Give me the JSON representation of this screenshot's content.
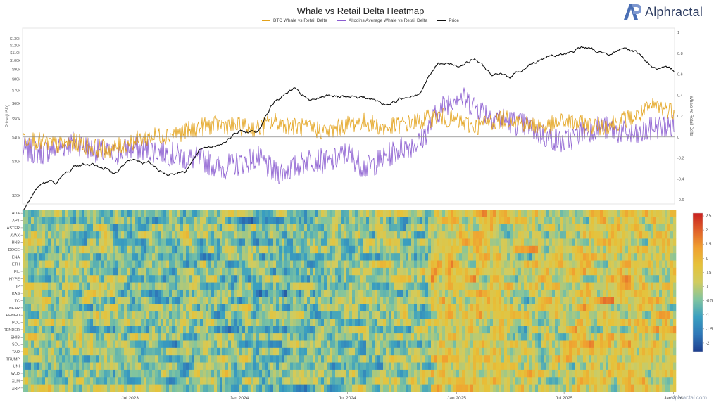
{
  "header": {
    "title": "Whale vs Retail Delta Heatmap",
    "brand": "Alphractal",
    "watermark": "alphractal.com"
  },
  "chart_data": [
    {
      "type": "line",
      "series": [
        {
          "name": "BTC Whale vs Retail Delta",
          "color": "#e3a21a",
          "axis": "right",
          "x": [
            "2023-01-01",
            "2023-02-01",
            "2023-03-01",
            "2023-04-01",
            "2023-05-01",
            "2023-06-01",
            "2023-07-01",
            "2023-08-01",
            "2023-09-01",
            "2023-10-01",
            "2023-11-01",
            "2023-12-01",
            "2024-01-01",
            "2024-02-01",
            "2024-03-01",
            "2024-04-01",
            "2024-05-01",
            "2024-06-01",
            "2024-07-01",
            "2024-08-01",
            "2024-09-01",
            "2024-10-01",
            "2024-11-01",
            "2024-12-01",
            "2025-01-01",
            "2025-02-01",
            "2025-03-01",
            "2025-04-01",
            "2025-05-01",
            "2025-06-01",
            "2025-07-01",
            "2025-08-01",
            "2025-09-01",
            "2025-10-01",
            "2025-11-01",
            "2025-12-01",
            "2026-01-01"
          ],
          "y": [
            0.0,
            -0.05,
            -0.08,
            -0.05,
            -0.1,
            -0.12,
            -0.05,
            0.0,
            0.02,
            0.05,
            0.1,
            0.12,
            0.1,
            0.08,
            0.15,
            0.1,
            0.08,
            0.05,
            0.12,
            0.15,
            0.08,
            0.12,
            0.15,
            0.2,
            0.15,
            0.1,
            0.15,
            0.18,
            0.12,
            0.1,
            0.15,
            0.12,
            0.1,
            0.15,
            0.2,
            0.3,
            0.25
          ]
        },
        {
          "name": "Altcoins Average Whale vs Retail Delta",
          "color": "#8a5cd0",
          "axis": "right",
          "x": [
            "2023-01-01",
            "2023-02-01",
            "2023-03-01",
            "2023-04-01",
            "2023-05-01",
            "2023-06-01",
            "2023-07-01",
            "2023-08-01",
            "2023-09-01",
            "2023-10-01",
            "2023-11-01",
            "2023-12-01",
            "2024-01-01",
            "2024-02-01",
            "2024-03-01",
            "2024-04-01",
            "2024-05-01",
            "2024-06-01",
            "2024-07-01",
            "2024-08-01",
            "2024-09-01",
            "2024-10-01",
            "2024-11-01",
            "2024-12-01",
            "2025-01-01",
            "2025-02-01",
            "2025-03-01",
            "2025-04-01",
            "2025-05-01",
            "2025-06-01",
            "2025-07-01",
            "2025-08-01",
            "2025-09-01",
            "2025-10-01",
            "2025-11-01",
            "2025-12-01",
            "2026-01-01"
          ],
          "y": [
            -0.12,
            -0.15,
            -0.1,
            -0.05,
            -0.12,
            -0.18,
            -0.1,
            -0.12,
            -0.15,
            -0.2,
            -0.22,
            -0.3,
            -0.25,
            -0.2,
            -0.35,
            -0.3,
            -0.2,
            -0.25,
            -0.15,
            -0.3,
            -0.2,
            -0.1,
            -0.05,
            0.25,
            0.4,
            0.3,
            0.2,
            0.15,
            0.1,
            0.0,
            -0.05,
            0.05,
            0.1,
            0.05,
            0.0,
            0.1,
            0.1
          ]
        },
        {
          "name": "Price",
          "color": "#111111",
          "axis": "left",
          "x": [
            "2023-01-01",
            "2023-02-01",
            "2023-03-01",
            "2023-04-01",
            "2023-05-01",
            "2023-06-01",
            "2023-07-01",
            "2023-08-01",
            "2023-09-01",
            "2023-10-01",
            "2023-11-01",
            "2023-12-01",
            "2024-01-01",
            "2024-02-01",
            "2024-03-01",
            "2024-04-01",
            "2024-05-01",
            "2024-06-01",
            "2024-07-01",
            "2024-08-01",
            "2024-09-01",
            "2024-10-01",
            "2024-11-01",
            "2024-12-01",
            "2025-01-01",
            "2025-02-01",
            "2025-03-01",
            "2025-04-01",
            "2025-05-01",
            "2025-06-01",
            "2025-07-01",
            "2025-08-01",
            "2025-09-01",
            "2025-10-01",
            "2025-11-01",
            "2025-12-01",
            "2026-01-01"
          ],
          "y": [
            16800,
            23000,
            23500,
            28500,
            29200,
            26500,
            30500,
            29500,
            25900,
            27000,
            35000,
            37500,
            42500,
            43000,
            62000,
            71000,
            60500,
            67500,
            62500,
            64500,
            59000,
            63500,
            70000,
            96500,
            95000,
            102000,
            84000,
            82500,
            94500,
            105000,
            107000,
            118000,
            108500,
            114000,
            110000,
            91000,
            87500
          ]
        }
      ],
      "y_left": {
        "label": "Price (USD)",
        "scale": "log",
        "range": [
          20000,
          140000
        ],
        "ticks": [
          "$130k",
          "$120k",
          "$110k",
          "$100k",
          "$90k",
          "$80k",
          "$70k",
          "$60k",
          "$50k",
          "$40k",
          "$30k",
          "$20k"
        ]
      },
      "y_right": {
        "label": "Whale vs Retail Delta",
        "range": [
          -0.6,
          1.0
        ],
        "ticks": [
          "1",
          "0.8",
          "0.6",
          "0.4",
          "0.2",
          "0",
          "-0.2",
          "-0.4",
          "-0.6"
        ]
      },
      "x_range": [
        "2023-01-01",
        "2026-01-03"
      ],
      "grid": false
    },
    {
      "type": "heatmap",
      "rows": [
        "ADA",
        "APT",
        "ASTER",
        "AVAX",
        "BNB",
        "DOGE",
        "ENA",
        "ETH",
        "FIL",
        "HYPE",
        "IP",
        "KAS",
        "LTC",
        "NEAR",
        "PENGU",
        "POL",
        "RENDER",
        "SHIB",
        "SOL",
        "TAO",
        "TRUMP",
        "UNI",
        "WLD",
        "XLM",
        "XRP"
      ],
      "x_range": [
        "2023-01-01",
        "2026-01-03"
      ],
      "x_ticks": [
        "Jul 2023",
        "Jan 2024",
        "Jul 2024",
        "Jan 2025",
        "Jul 2025",
        "Jan 2026"
      ],
      "colorscale": {
        "range": [
          -2.3,
          2.6
        ],
        "ticks": [
          "2.5",
          "2",
          "1.5",
          "1",
          "0.5",
          "0",
          "-0.5",
          "-1",
          "-1.5",
          "-2"
        ],
        "colors": [
          "#1f3f8f",
          "#2f78b8",
          "#3a9fc0",
          "#80c4a0",
          "#d0cc60",
          "#e6c23a",
          "#f0a030",
          "#e0602a",
          "#c82020"
        ]
      },
      "segments": [
        {
          "start": "2023-01-01",
          "end": "2023-06-01",
          "mean": -0.1
        },
        {
          "start": "2023-06-01",
          "end": "2024-01-01",
          "mean": -0.35
        },
        {
          "start": "2024-01-01",
          "end": "2024-07-01",
          "mean": -0.45
        },
        {
          "start": "2024-07-01",
          "end": "2024-11-15",
          "mean": -0.2
        },
        {
          "start": "2024-11-15",
          "end": "2025-03-15",
          "mean": 0.5
        },
        {
          "start": "2025-03-15",
          "end": "2025-07-01",
          "mean": 0.15
        },
        {
          "start": "2025-07-01",
          "end": "2026-01-03",
          "mean": 0.4
        }
      ]
    }
  ]
}
